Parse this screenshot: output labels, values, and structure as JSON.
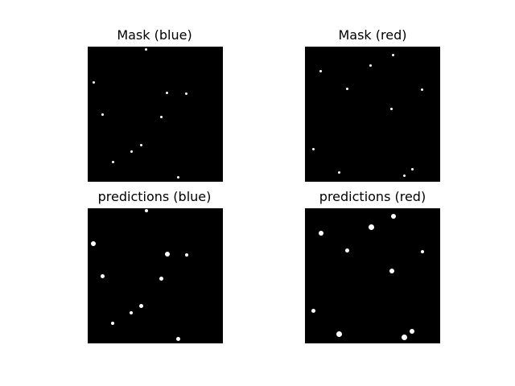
{
  "figure": {
    "background": "#ffffff",
    "panel_background": "#000000",
    "spot_color": "#ffffff"
  },
  "panels": [
    {
      "id": "mask-blue",
      "title": "Mask (blue)"
    },
    {
      "id": "mask-red",
      "title": "Mask (red)"
    },
    {
      "id": "pred-blue",
      "title": "predictions (blue)"
    },
    {
      "id": "pred-red",
      "title": "predictions (red)"
    }
  ]
}
